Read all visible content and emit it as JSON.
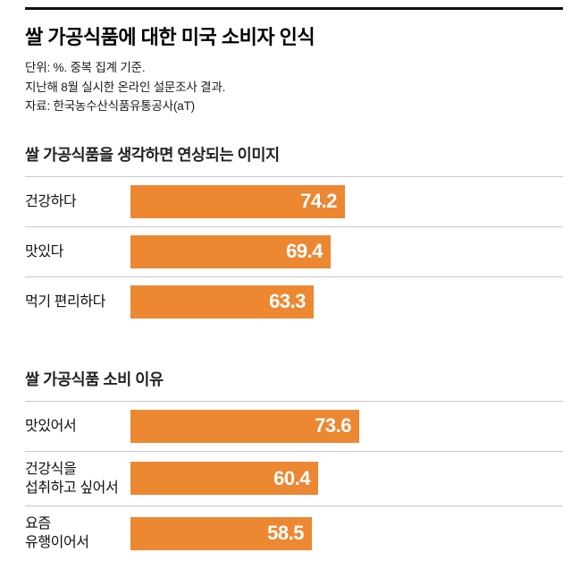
{
  "header": {
    "title": "쌀 가공식품에 대한 미국 소비자 인식",
    "notes": [
      "단위: %. 중복 집계 기준.",
      "지난해 8월 실시한 온라인 설문조사 결과.",
      "자료: 한국농수산식품유통공사(aT)"
    ]
  },
  "colors": {
    "bar": "#ec8732",
    "top_rule": "#111111",
    "separator": "#c9c9c9",
    "value_text": "#ffffff"
  },
  "chart_data": [
    {
      "type": "bar",
      "orientation": "horizontal",
      "title": "쌀 가공식품을 생각하면 연상되는 이미지",
      "categories": [
        "건강하다",
        "맛있다",
        "먹기 편리하다"
      ],
      "category_lines": [
        [
          "건강하다"
        ],
        [
          "맛있다"
        ],
        [
          "먹기 편리하다"
        ]
      ],
      "values": [
        74.2,
        69.4,
        63.3
      ],
      "unit": "%",
      "xlim": [
        0,
        100
      ],
      "value_labels": [
        "74.2",
        "69.4",
        "63.3"
      ],
      "legend": "none",
      "grid": "off"
    },
    {
      "type": "bar",
      "orientation": "horizontal",
      "title": "쌀 가공식품 소비 이유",
      "categories": [
        "맛있어서",
        "건강식을 섭취하고 싶어서",
        "요즘 유행이어서"
      ],
      "category_lines": [
        [
          "맛있어서"
        ],
        [
          "건강식을",
          "섭취하고 싶어서"
        ],
        [
          "요즘",
          "유행이어서"
        ]
      ],
      "values": [
        73.6,
        60.4,
        58.5
      ],
      "unit": "%",
      "xlim": [
        0,
        100
      ],
      "value_labels": [
        "73.6",
        "60.4",
        "58.5"
      ],
      "legend": "none",
      "grid": "off"
    }
  ]
}
